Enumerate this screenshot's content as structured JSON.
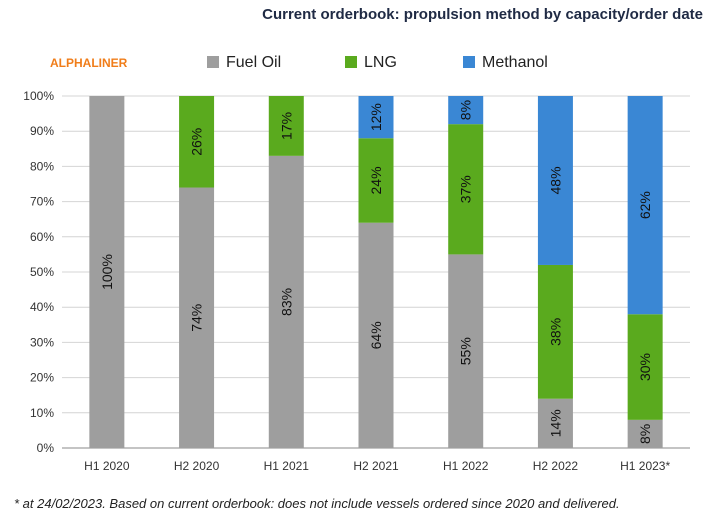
{
  "chart_data": {
    "type": "bar",
    "stacked": true,
    "title": "Current orderbook: propulsion method by capacity/order date",
    "brand": "ALPHALINER",
    "categories": [
      "H1 2020",
      "H2 2020",
      "H1 2021",
      "H2 2021",
      "H1 2022",
      "H2 2022",
      "H1 2023*"
    ],
    "series": [
      {
        "name": "Fuel Oil",
        "color": "#9e9e9e",
        "values": [
          100,
          74,
          83,
          64,
          55,
          14,
          8
        ]
      },
      {
        "name": "LNG",
        "color": "#5aaa1e",
        "values": [
          0,
          26,
          17,
          24,
          37,
          38,
          30
        ]
      },
      {
        "name": "Methanol",
        "color": "#3a87d4",
        "values": [
          0,
          0,
          0,
          12,
          8,
          48,
          62
        ]
      }
    ],
    "data_labels": [
      [
        "100%",
        "74%",
        "83%",
        "64%",
        "55%",
        "14%",
        "8%"
      ],
      [
        "",
        "26%",
        "17%",
        "24%",
        "37%",
        "38%",
        "30%"
      ],
      [
        "",
        "",
        "",
        "12%",
        "8%",
        "48%",
        "62%"
      ]
    ],
    "y_ticks": [
      "0%",
      "10%",
      "20%",
      "30%",
      "40%",
      "50%",
      "60%",
      "70%",
      "80%",
      "90%",
      "100%"
    ],
    "ylim": [
      0,
      100
    ],
    "grid": true,
    "legend_position": "top",
    "footnote": "* at 24/02/2023. Based on current orderbook: does not include vessels ordered since 2020 and delivered.",
    "brand_color": "#f07d1a"
  }
}
